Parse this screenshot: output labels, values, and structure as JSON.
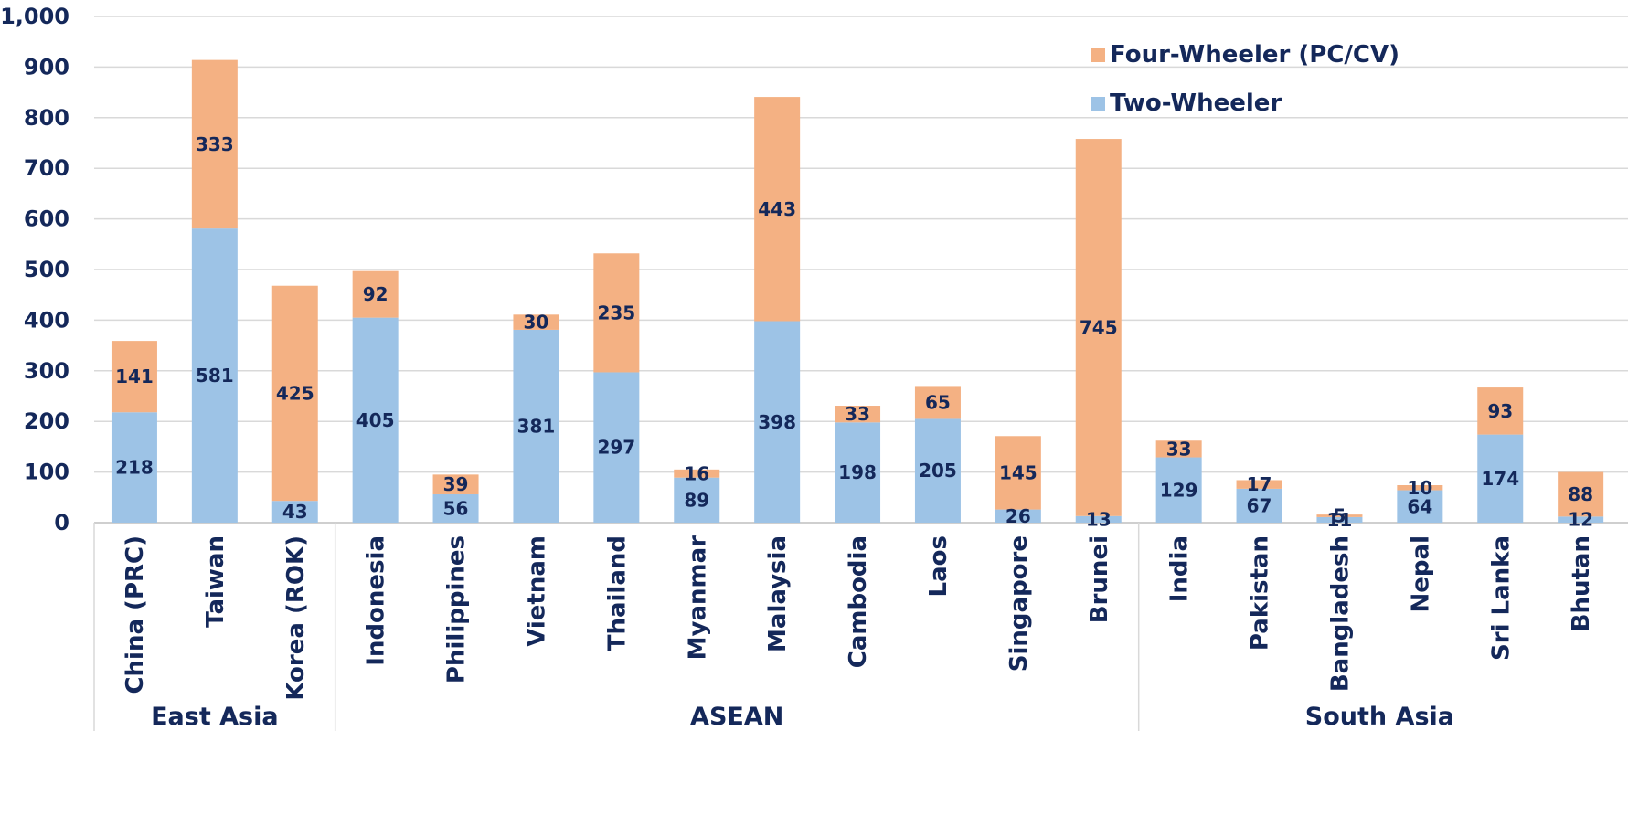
{
  "chart_data": {
    "type": "bar",
    "stacked": true,
    "ylim": [
      0,
      1000
    ],
    "y_ticks": [
      "0",
      "100",
      "200",
      "300",
      "400",
      "500",
      "600",
      "700",
      "800",
      "900",
      "1,000"
    ],
    "grid": true,
    "legend_position": "top-right",
    "categories": [
      "China (PRC)",
      "Taiwan",
      "Korea (ROK)",
      "Indonesia",
      "Philippines",
      "Vietnam",
      "Thailand",
      "Myanmar",
      "Malaysia",
      "Cambodia",
      "Laos",
      "Singapore",
      "Brunei",
      "India",
      "Pakistan",
      "Bangladesh",
      "Nepal",
      "Sri Lanka",
      "Bhutan"
    ],
    "groups": [
      {
        "label": "East Asia",
        "count": 3
      },
      {
        "label": "ASEAN",
        "count": 10
      },
      {
        "label": "South Asia",
        "count": 6
      }
    ],
    "series": [
      {
        "name": "Two-Wheeler",
        "color": "#9dc3e6",
        "values": [
          218,
          581,
          43,
          405,
          56,
          381,
          297,
          89,
          398,
          198,
          205,
          26,
          13,
          129,
          67,
          11,
          64,
          174,
          12
        ]
      },
      {
        "name": "Four-Wheeler (PC/CV)",
        "color": "#f4b183",
        "values": [
          141,
          333,
          425,
          92,
          39,
          30,
          235,
          16,
          443,
          33,
          65,
          145,
          745,
          33,
          17,
          5,
          10,
          93,
          88
        ]
      }
    ],
    "legend": [
      "Four-Wheeler (PC/CV)",
      "Two-Wheeler"
    ]
  }
}
